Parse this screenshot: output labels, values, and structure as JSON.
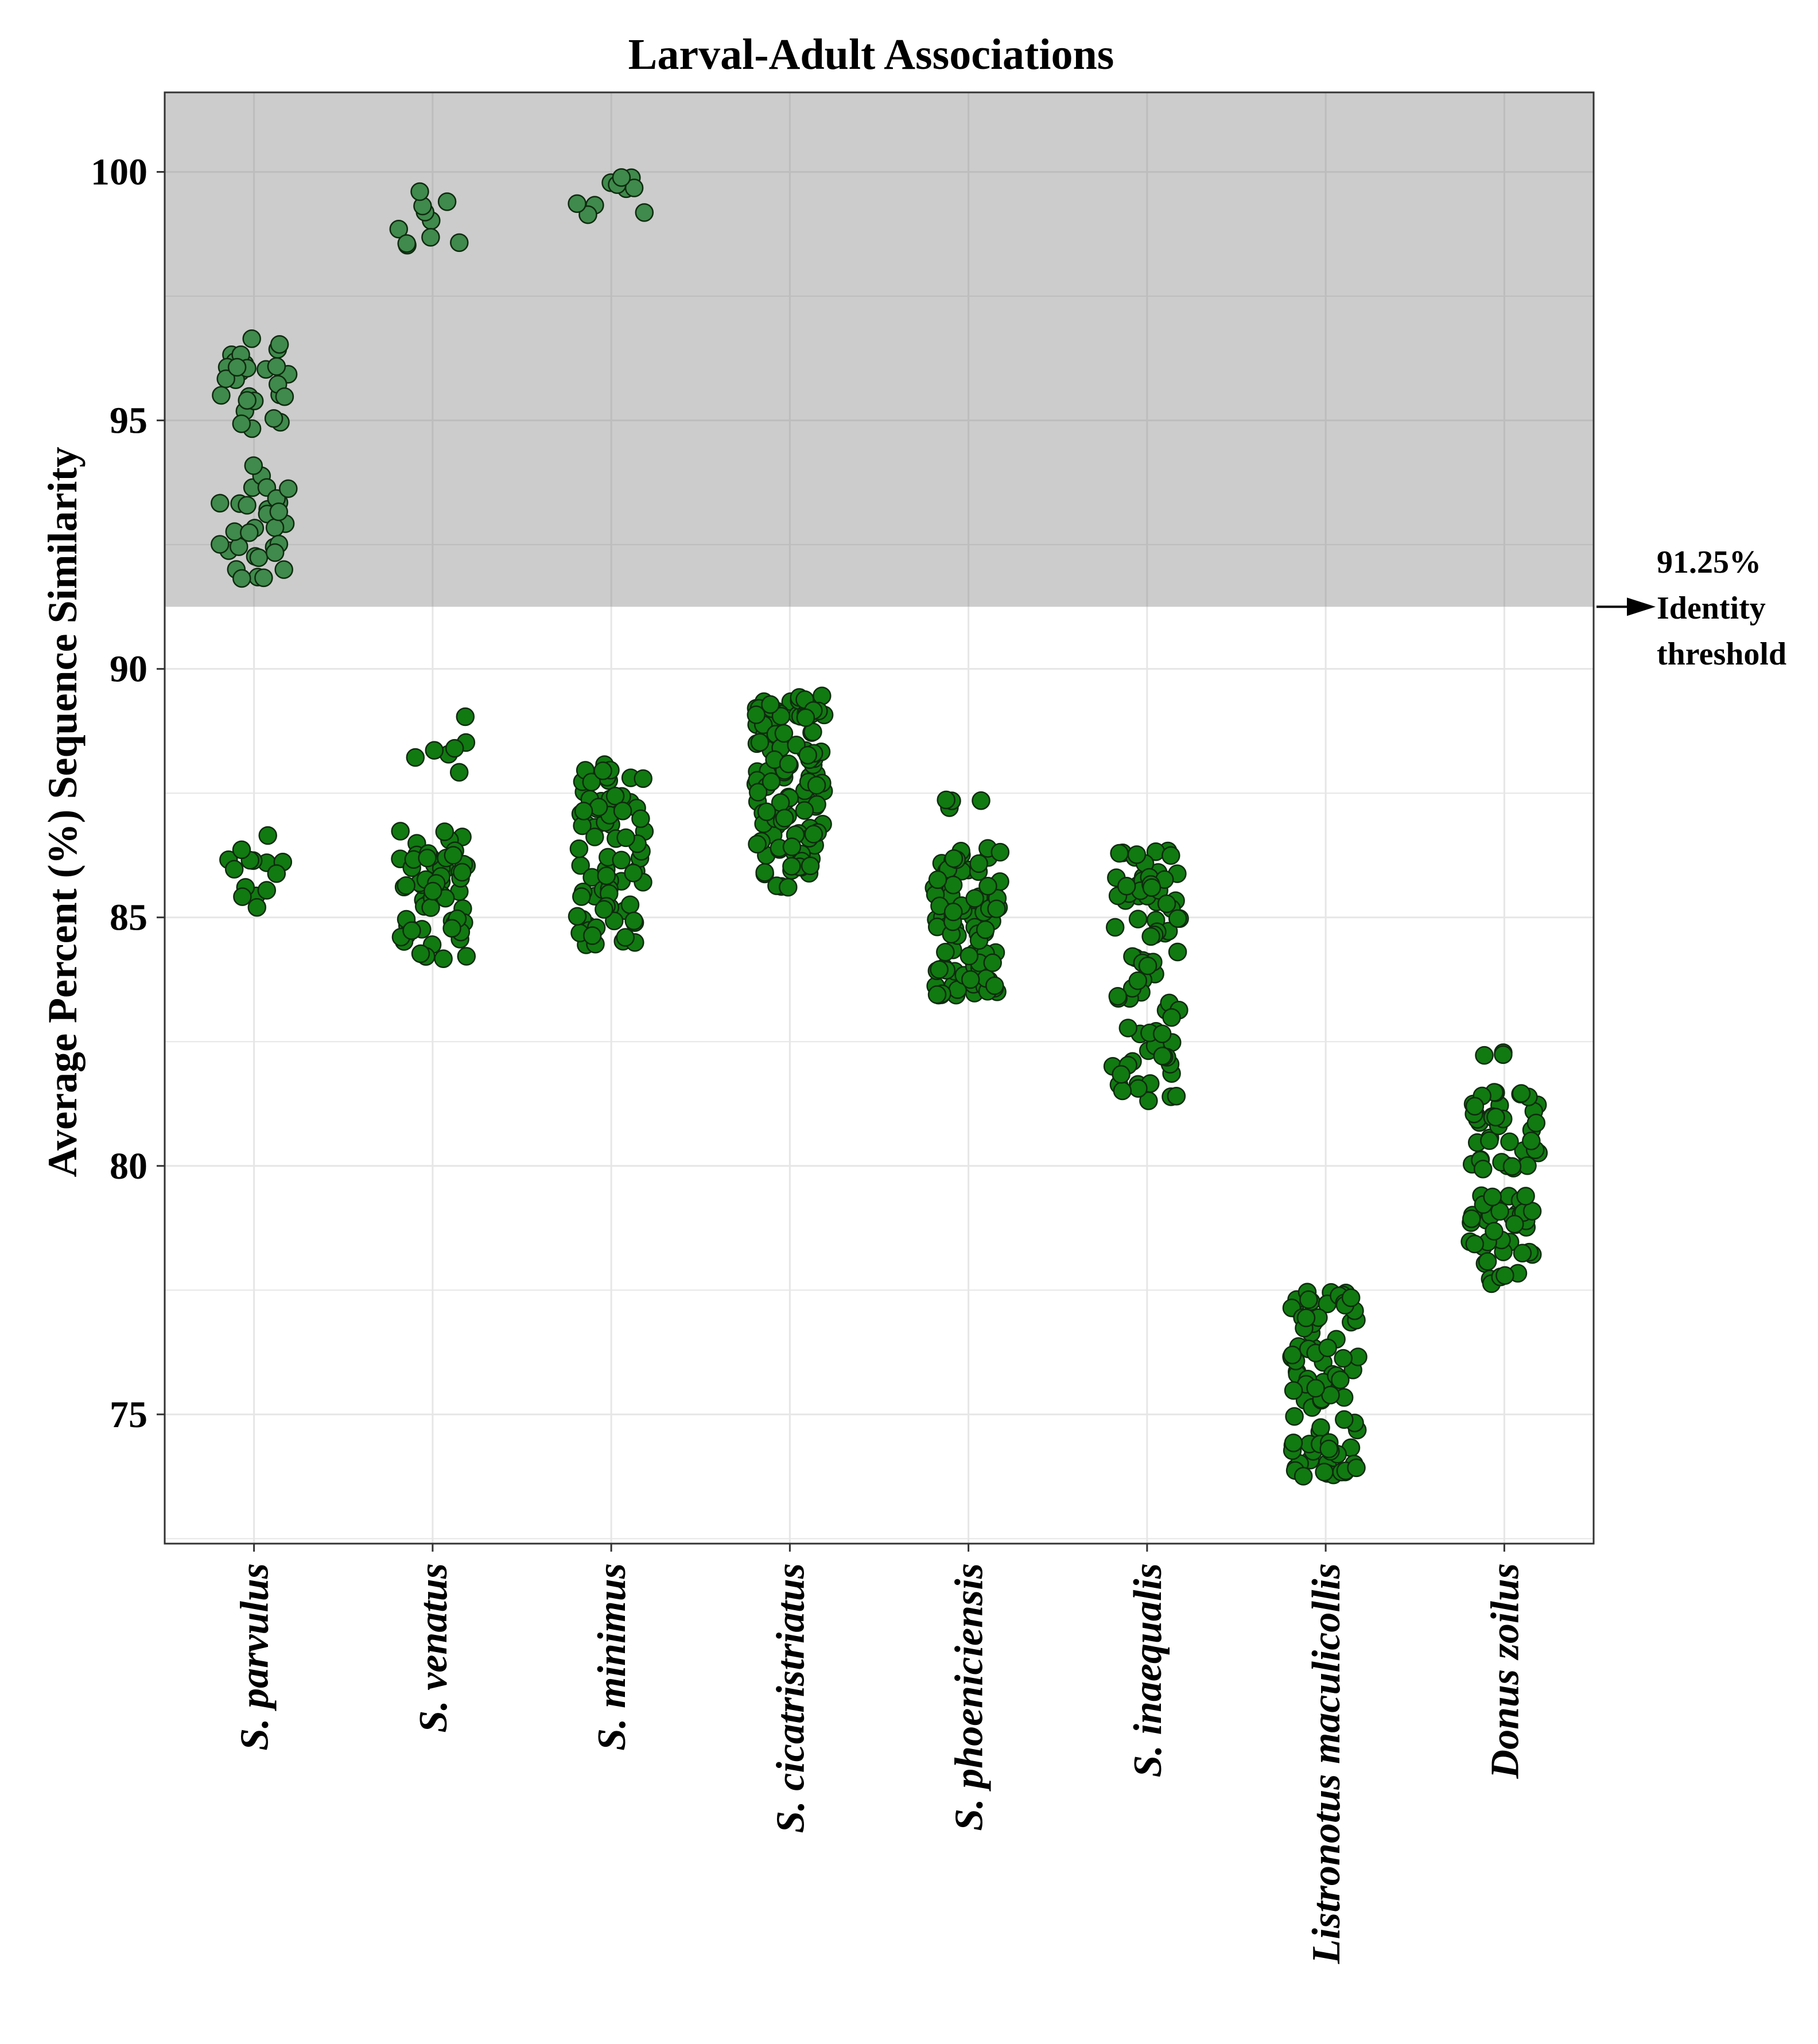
{
  "chart_data": {
    "type": "scatter",
    "title": "Larval-Adult Associations",
    "ylabel": "Average Percent (%) Sequence Similarity",
    "xlabel": "",
    "ylim": [
      72.4,
      101.6
    ],
    "yticks": [
      75,
      80,
      85,
      90,
      95,
      100
    ],
    "grid": true,
    "categories": [
      "S. parvulus",
      "S. venatus",
      "S. minimus",
      "S. cicatristriatus",
      "S. phoeniciensis",
      "S. inaequalis",
      "Listronotus maculicollis",
      "Donus zoilus"
    ],
    "threshold": {
      "value": 91.25,
      "label_value": "91.25%",
      "label_line1": "Identity",
      "label_line2": "threshold"
    },
    "colors": {
      "shaded_region": "#cccccc",
      "point_fill": "#117a11",
      "point_fill_shaded": "#3f8a4c",
      "point_stroke": "#0f2a0f",
      "gridline": "#e6e6e6",
      "gridline_shaded": "#bdbdbd",
      "axis": "#333333"
    },
    "series": [
      {
        "name": "S. parvulus",
        "groups": [
          {
            "n": 30,
            "min": 94.6,
            "max": 96.7
          },
          {
            "n": 32,
            "min": 91.8,
            "max": 94.1
          },
          {
            "n": 14,
            "min": 85.0,
            "max": 86.7
          }
        ]
      },
      {
        "name": "S. venatus",
        "groups": [
          {
            "n": 10,
            "min": 98.4,
            "max": 99.7
          },
          {
            "n": 7,
            "min": 87.7,
            "max": 90.0
          },
          {
            "n": 60,
            "min": 84.1,
            "max": 86.8
          }
        ]
      },
      {
        "name": "S. minimus",
        "groups": [
          {
            "n": 10,
            "min": 99.1,
            "max": 99.9
          },
          {
            "n": 75,
            "min": 84.4,
            "max": 88.1
          }
        ]
      },
      {
        "name": "S. cicatristriatus",
        "groups": [
          {
            "n": 120,
            "min": 85.6,
            "max": 89.5
          }
        ]
      },
      {
        "name": "S. phoeniciensis",
        "groups": [
          {
            "n": 4,
            "min": 87.2,
            "max": 87.5
          },
          {
            "n": 95,
            "min": 83.4,
            "max": 86.4
          }
        ]
      },
      {
        "name": "S. inaequalis",
        "groups": [
          {
            "n": 45,
            "min": 84.6,
            "max": 86.4
          },
          {
            "n": 45,
            "min": 81.3,
            "max": 84.4
          }
        ]
      },
      {
        "name": "Listronotus maculicollis",
        "groups": [
          {
            "n": 90,
            "min": 73.7,
            "max": 77.6
          }
        ]
      },
      {
        "name": "Donus zoilus",
        "groups": [
          {
            "n": 3,
            "min": 82.2,
            "max": 82.4
          },
          {
            "n": 40,
            "min": 79.8,
            "max": 81.5
          },
          {
            "n": 45,
            "min": 77.6,
            "max": 79.4
          }
        ]
      }
    ]
  }
}
